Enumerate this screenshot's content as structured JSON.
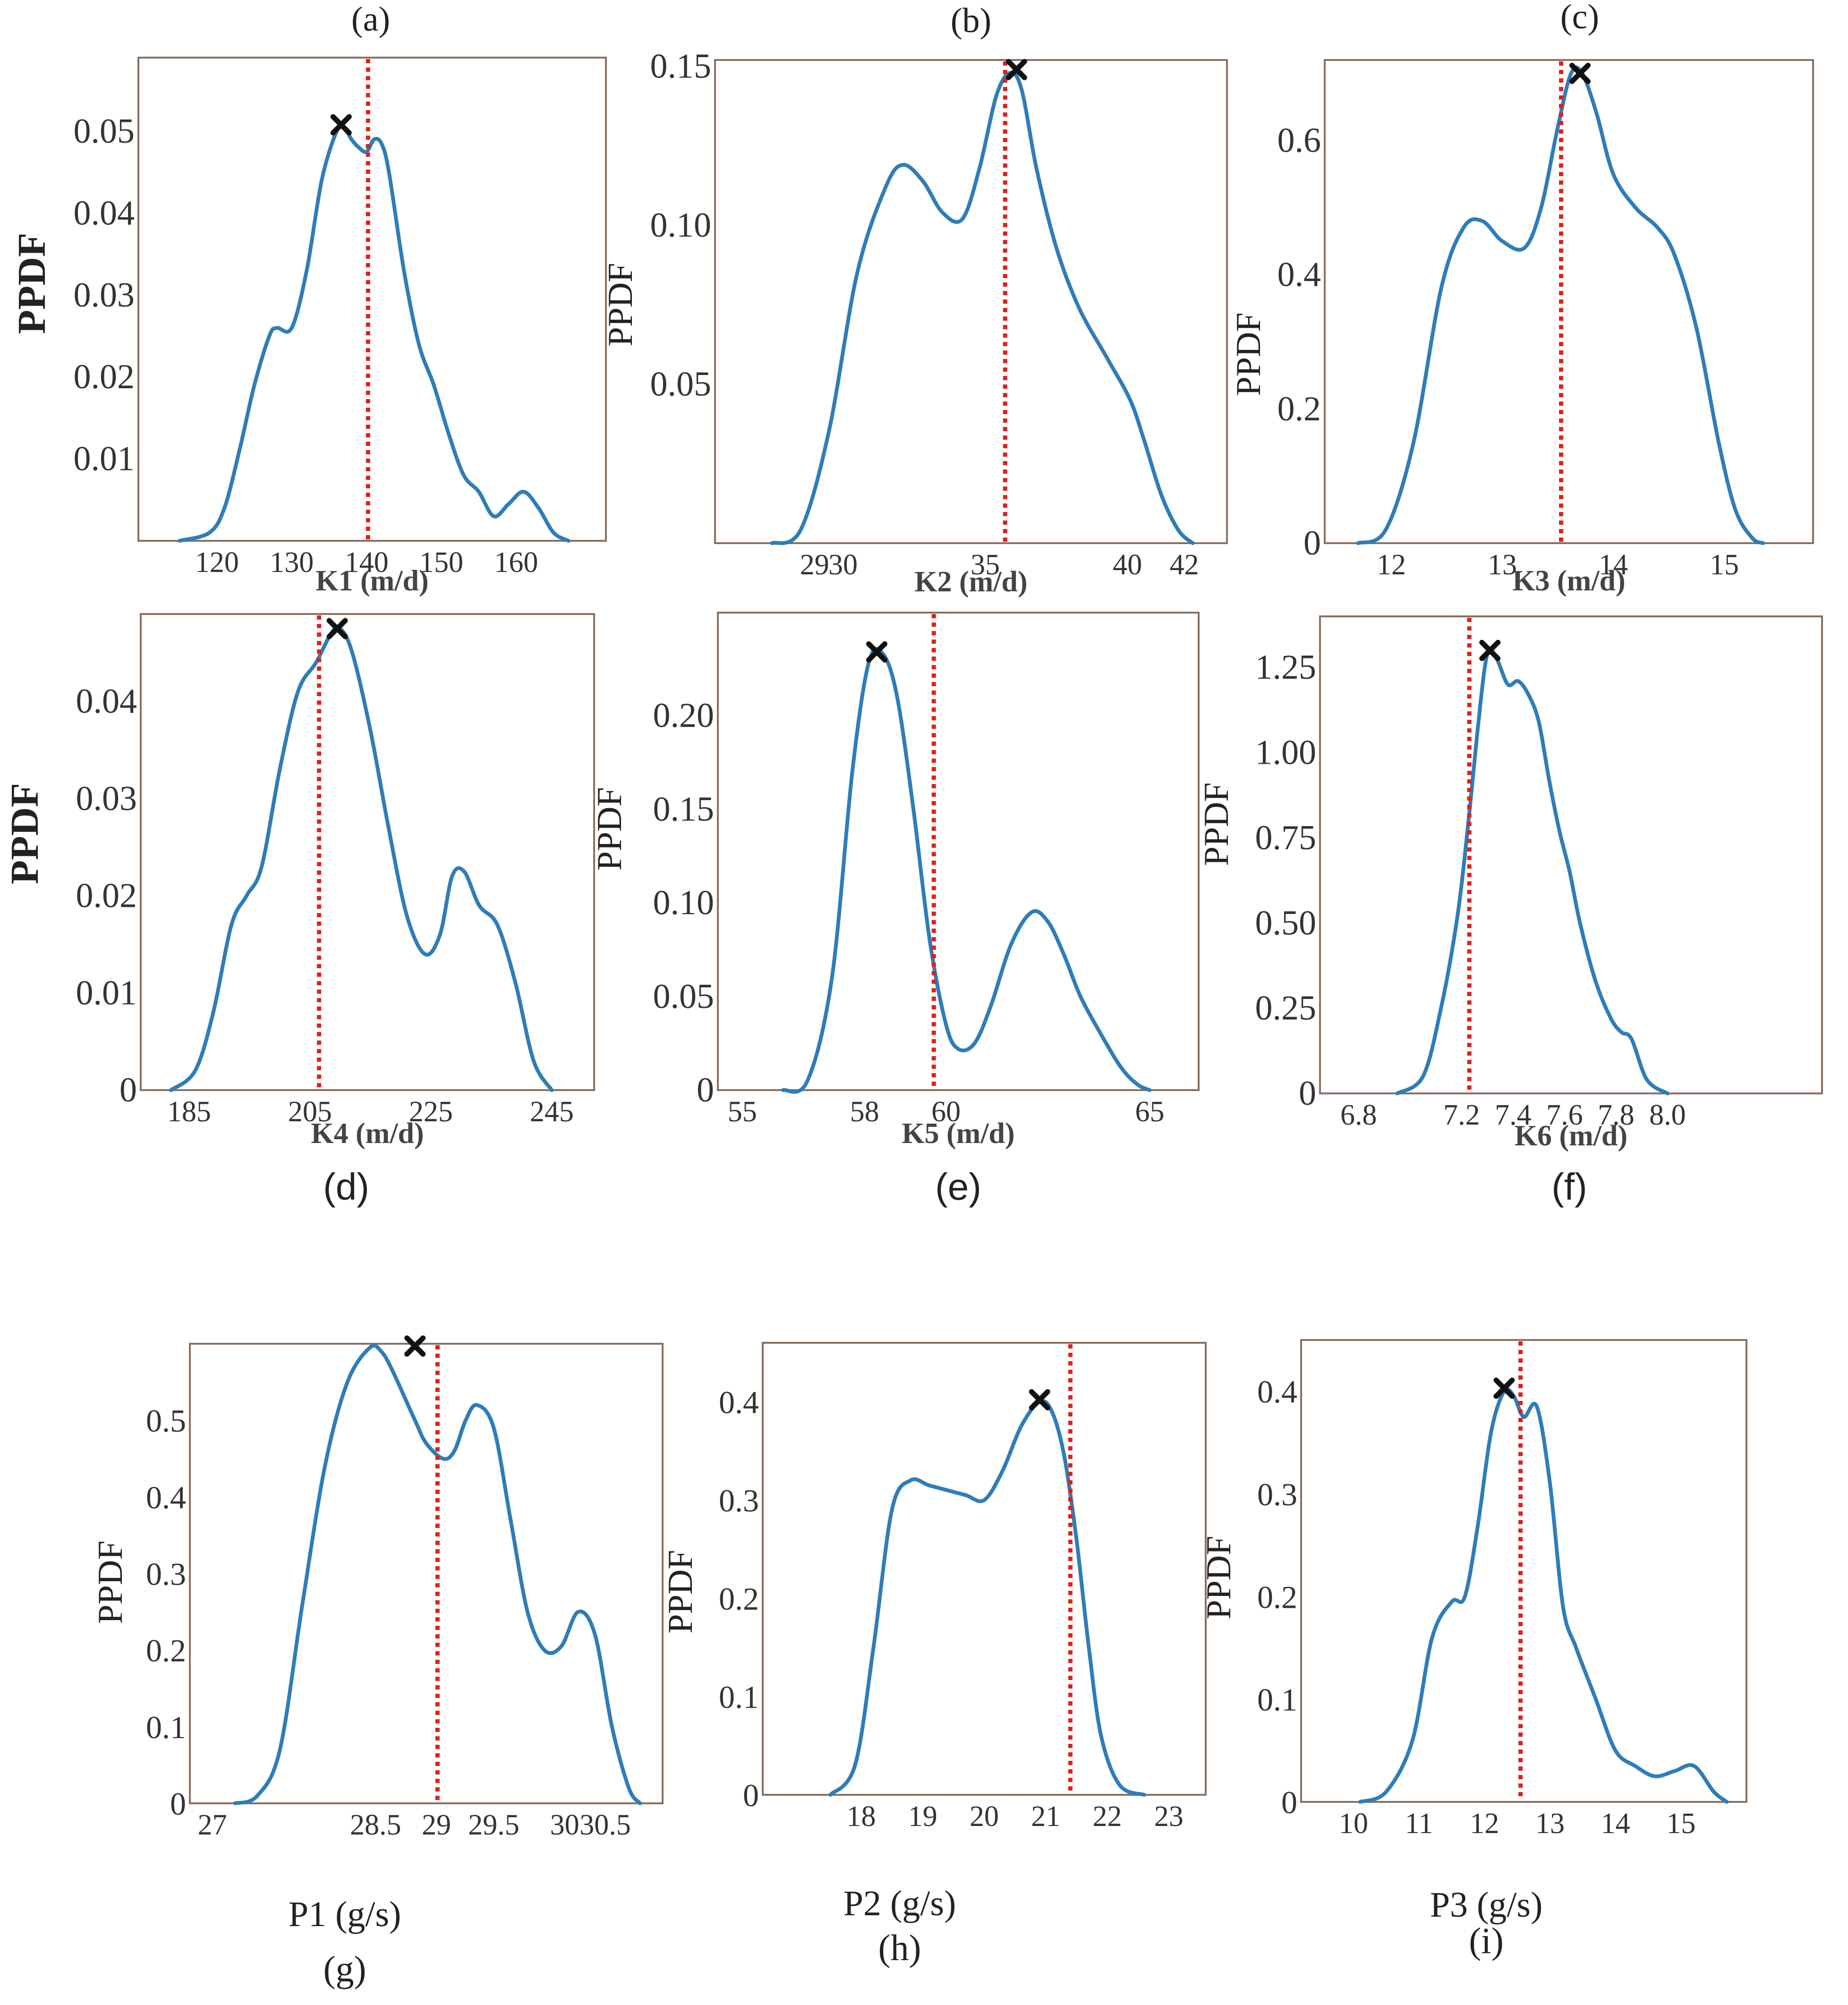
{
  "figure": {
    "kde_color": "#2E7DB8",
    "ref_color": "#E0201C",
    "marker_color": "#111111",
    "frame_color": "#8A7060",
    "ylabel": "PPDF"
  },
  "chart_data": [
    {
      "id": "a",
      "panel_label": "(a)",
      "type": "line",
      "xlabel": "K1 (m/d)",
      "ylabel": "PPDF",
      "xlim": [
        109.5,
        172
      ],
      "ylim": [
        0,
        0.059
      ],
      "xticks": [
        120,
        130,
        140,
        150,
        160
      ],
      "xtick_labels": [
        "120",
        "130",
        "140",
        "150",
        "160"
      ],
      "yticks": [
        0.01,
        0.02,
        0.03,
        0.04,
        0.05
      ],
      "ytick_labels": [
        "0.01",
        "0.02",
        "0.03",
        "0.04",
        "0.05"
      ],
      "curve": {
        "x": [
          115,
          119,
          121,
          123,
          125,
          127,
          128,
          130,
          132,
          134,
          136,
          137,
          138,
          139,
          140,
          141,
          142,
          143,
          145,
          147,
          149,
          151,
          153,
          155,
          157,
          159,
          161,
          163,
          165,
          167
        ],
        "y": [
          0,
          0.001,
          0.004,
          0.011,
          0.019,
          0.025,
          0.026,
          0.026,
          0.033,
          0.044,
          0.05,
          0.0505,
          0.049,
          0.048,
          0.0475,
          0.049,
          0.0485,
          0.045,
          0.033,
          0.024,
          0.019,
          0.013,
          0.008,
          0.006,
          0.003,
          0.0045,
          0.006,
          0.004,
          0.001,
          0
        ]
      },
      "ref_x": 140.2,
      "marker": {
        "x": 136.6,
        "y": 0.0508
      }
    },
    {
      "id": "b",
      "panel_label": "(b)",
      "type": "line",
      "xlabel": "K2 (m/d)",
      "ylabel": "PPDF",
      "xlim": [
        25.5,
        43.5
      ],
      "ylim": [
        0,
        0.152
      ],
      "xticks": [
        29,
        30,
        35,
        40,
        42
      ],
      "xtick_labels": [
        "29",
        "30",
        "35",
        "40",
        "42"
      ],
      "yticks": [
        0.05,
        0.1,
        0.15
      ],
      "ytick_labels": [
        "0.05",
        "0.10",
        "0.15"
      ],
      "curve": {
        "x": [
          27.5,
          28.5,
          29.5,
          30.5,
          31.5,
          32.1,
          32.8,
          33.5,
          34.2,
          34.8,
          35.4,
          35.9,
          36.3,
          36.8,
          37.5,
          38.3,
          39.3,
          40.1,
          40.6,
          41.2,
          41.8,
          42.3
        ],
        "y": [
          0,
          0.004,
          0.035,
          0.085,
          0.112,
          0.119,
          0.114,
          0.104,
          0.102,
          0.118,
          0.141,
          0.148,
          0.142,
          0.118,
          0.093,
          0.074,
          0.058,
          0.045,
          0.032,
          0.015,
          0.004,
          0
        ]
      },
      "ref_x": 35.7,
      "marker": {
        "x": 36.1,
        "y": 0.149
      }
    },
    {
      "id": "c",
      "panel_label": "(c)",
      "type": "line",
      "xlabel": "K3 (m/d)",
      "ylabel": "PPDF",
      "xlim": [
        11.4,
        15.8
      ],
      "ylim": [
        0,
        0.72
      ],
      "xticks": [
        12,
        13,
        14,
        15
      ],
      "xtick_labels": [
        "12",
        "13",
        "14",
        "15"
      ],
      "yticks": [
        0,
        0.2,
        0.4,
        0.6
      ],
      "ytick_labels": [
        "0",
        "0.2",
        "0.4",
        "0.6"
      ],
      "curve": {
        "x": [
          11.7,
          11.95,
          12.2,
          12.45,
          12.65,
          12.82,
          13.0,
          13.2,
          13.35,
          13.5,
          13.62,
          13.72,
          13.85,
          14.0,
          14.2,
          14.4,
          14.55,
          14.75,
          14.95,
          15.1,
          15.25,
          15.35
        ],
        "y": [
          0,
          0.02,
          0.15,
          0.38,
          0.47,
          0.48,
          0.45,
          0.44,
          0.5,
          0.62,
          0.7,
          0.7,
          0.64,
          0.55,
          0.5,
          0.47,
          0.43,
          0.32,
          0.15,
          0.05,
          0.008,
          0
        ]
      },
      "ref_x": 13.53,
      "marker": {
        "x": 13.7,
        "y": 0.7
      }
    },
    {
      "id": "d",
      "panel_label": "(d)",
      "type": "line",
      "xlabel": "K4 (m/d)",
      "ylabel": "PPDF",
      "xlim": [
        177,
        252
      ],
      "ylim": [
        0,
        0.049
      ],
      "xticks": [
        185,
        205,
        225,
        245
      ],
      "xtick_labels": [
        "185",
        "205",
        "225",
        "245"
      ],
      "yticks": [
        0,
        0.01,
        0.02,
        0.03,
        0.04
      ],
      "ytick_labels": [
        "0",
        "0.01",
        "0.02",
        "0.03",
        "0.04"
      ],
      "curve": {
        "x": [
          182,
          186,
          189,
          192,
          194.5,
          197,
          200,
          203,
          206,
          208.5,
          210,
          212,
          215,
          218,
          221,
          224,
          226.5,
          228.5,
          230.5,
          233,
          236,
          239,
          242,
          245
        ],
        "y": [
          0,
          0.002,
          0.008,
          0.017,
          0.02,
          0.023,
          0.033,
          0.041,
          0.044,
          0.047,
          0.0475,
          0.045,
          0.037,
          0.027,
          0.018,
          0.014,
          0.016,
          0.022,
          0.0225,
          0.019,
          0.017,
          0.011,
          0.003,
          0
        ]
      },
      "ref_x": 206.5,
      "marker": {
        "x": 209.5,
        "y": 0.0475
      }
    },
    {
      "id": "e",
      "panel_label": "(e)",
      "type": "line",
      "xlabel": "K5 (m/d)",
      "ylabel": "PPDF",
      "xlim": [
        54.4,
        66.2
      ],
      "ylim": [
        0,
        0.255
      ],
      "xticks": [
        55,
        58,
        60,
        65
      ],
      "xtick_labels": [
        "55",
        "58",
        "60",
        "65"
      ],
      "yticks": [
        0,
        0.05,
        0.1,
        0.15,
        0.2
      ],
      "ytick_labels": [
        "0",
        "0.05",
        "0.10",
        "0.15",
        "0.20"
      ],
      "curve": {
        "x": [
          56.0,
          56.6,
          57.2,
          57.7,
          58.1,
          58.45,
          58.8,
          59.2,
          59.6,
          60.0,
          60.3,
          60.7,
          61.1,
          61.6,
          62.1,
          62.5,
          62.9,
          63.3,
          63.8,
          64.3,
          64.7,
          65.0
        ],
        "y": [
          0,
          0.005,
          0.06,
          0.17,
          0.228,
          0.233,
          0.21,
          0.15,
          0.08,
          0.035,
          0.022,
          0.025,
          0.045,
          0.078,
          0.095,
          0.09,
          0.072,
          0.05,
          0.03,
          0.012,
          0.003,
          0
        ]
      },
      "ref_x": 59.7,
      "marker": {
        "x": 58.3,
        "y": 0.234
      }
    },
    {
      "id": "f",
      "panel_label": "(f)",
      "type": "line",
      "xlabel": "K6 (m/d)",
      "ylabel": "PPDF",
      "xlim": [
        6.65,
        8.6
      ],
      "ylim": [
        0,
        1.4
      ],
      "xticks": [
        6.8,
        7.2,
        7.4,
        7.6,
        7.8,
        8.0
      ],
      "xtick_labels": [
        "6.8",
        "7.2",
        "7.4",
        "7.6",
        "7.8",
        "8.0"
      ],
      "yticks": [
        0,
        0.25,
        0.5,
        0.75,
        1.0,
        1.25
      ],
      "ytick_labels": [
        "0",
        "0.25",
        "0.50",
        "0.75",
        "1.00",
        "1.25"
      ],
      "curve": {
        "x": [
          6.95,
          7.05,
          7.12,
          7.18,
          7.22,
          7.26,
          7.29,
          7.31,
          7.34,
          7.38,
          7.42,
          7.46,
          7.5,
          7.54,
          7.58,
          7.62,
          7.66,
          7.72,
          7.78,
          7.82,
          7.86,
          7.92,
          8.0
        ],
        "y": [
          0,
          0.05,
          0.25,
          0.5,
          0.75,
          1.05,
          1.25,
          1.3,
          1.27,
          1.2,
          1.21,
          1.17,
          1.09,
          0.92,
          0.77,
          0.65,
          0.5,
          0.33,
          0.22,
          0.18,
          0.16,
          0.04,
          0
        ]
      },
      "ref_x": 7.23,
      "marker": {
        "x": 7.31,
        "y": 1.3
      }
    },
    {
      "id": "g",
      "panel_label": "(g)",
      "type": "line",
      "xlabel": "P1 (g/s)",
      "ylabel": "PPDF",
      "xlim": [
        26.8,
        31.0
      ],
      "ylim": [
        0,
        0.6
      ],
      "xticks": [
        27,
        28.5,
        29,
        29.5,
        30,
        30.5
      ],
      "xtick_label_x": [
        27,
        28.45,
        28.99,
        29.5,
        30.13,
        30.49
      ],
      "xtick_labels": [
        "27",
        "28.5",
        "29",
        "29.5",
        "30",
        "30.5"
      ],
      "yticks": [
        0,
        0.1,
        0.2,
        0.3,
        0.4,
        0.5
      ],
      "ytick_labels": [
        "0",
        "0.1",
        "0.2",
        "0.3",
        "0.4",
        "0.5"
      ],
      "curve": {
        "x": [
          27.2,
          27.4,
          27.6,
          27.8,
          28.0,
          28.2,
          28.4,
          28.5,
          28.6,
          28.8,
          28.9,
          29.05,
          29.15,
          29.25,
          29.35,
          29.5,
          29.65,
          29.8,
          29.95,
          30.1,
          30.25,
          30.4,
          30.55,
          30.7,
          30.8
        ],
        "y": [
          0,
          0.01,
          0.07,
          0.26,
          0.44,
          0.55,
          0.595,
          0.59,
          0.565,
          0.5,
          0.47,
          0.45,
          0.46,
          0.5,
          0.52,
          0.49,
          0.37,
          0.25,
          0.2,
          0.205,
          0.25,
          0.22,
          0.1,
          0.02,
          0
        ]
      },
      "ref_x": 29.0,
      "marker": {
        "x": 28.8,
        "y": 0.597
      }
    },
    {
      "id": "h",
      "panel_label": "(h)",
      "type": "line",
      "xlabel": "P2 (g/s)",
      "ylabel": "PPDF",
      "xlim": [
        16.4,
        23.6
      ],
      "ylim": [
        0,
        0.46
      ],
      "xticks": [
        18,
        19,
        20,
        21,
        22,
        23
      ],
      "xtick_labels": [
        "18",
        "19",
        "20",
        "21",
        "22",
        "23"
      ],
      "yticks": [
        0,
        0.1,
        0.2,
        0.3,
        0.4
      ],
      "ytick_labels": [
        "0",
        "0.1",
        "0.2",
        "0.3",
        "0.4"
      ],
      "curve": {
        "x": [
          17.5,
          17.9,
          18.2,
          18.5,
          18.8,
          19.1,
          19.4,
          19.7,
          20.0,
          20.3,
          20.6,
          20.9,
          21.1,
          21.3,
          21.5,
          21.7,
          21.9,
          22.2,
          22.6
        ],
        "y": [
          0,
          0.03,
          0.15,
          0.29,
          0.32,
          0.315,
          0.31,
          0.305,
          0.3,
          0.33,
          0.375,
          0.4,
          0.39,
          0.345,
          0.26,
          0.15,
          0.06,
          0.01,
          0
        ]
      },
      "ref_x": 21.4,
      "marker": {
        "x": 20.9,
        "y": 0.402
      }
    },
    {
      "id": "i",
      "panel_label": "(i)",
      "type": "line",
      "xlabel": "P3 (g/s)",
      "ylabel": "PPDF",
      "xlim": [
        9.2,
        16.0
      ],
      "ylim": [
        0,
        0.45
      ],
      "xticks": [
        10,
        11,
        12,
        13,
        14,
        15
      ],
      "xtick_labels": [
        "10",
        "11",
        "12",
        "13",
        "14",
        "15"
      ],
      "yticks": [
        0,
        0.1,
        0.2,
        0.3,
        0.4
      ],
      "ytick_labels": [
        "0",
        "0.1",
        "0.2",
        "0.3",
        "0.4"
      ],
      "curve": {
        "x": [
          10.1,
          10.5,
          10.9,
          11.2,
          11.5,
          11.7,
          11.9,
          12.1,
          12.3,
          12.45,
          12.6,
          12.8,
          13.0,
          13.2,
          13.4,
          13.7,
          14.0,
          14.3,
          14.6,
          14.9,
          15.2,
          15.5,
          15.7
        ],
        "y": [
          0,
          0.01,
          0.06,
          0.16,
          0.195,
          0.2,
          0.27,
          0.36,
          0.4,
          0.395,
          0.375,
          0.385,
          0.31,
          0.19,
          0.15,
          0.1,
          0.05,
          0.035,
          0.025,
          0.03,
          0.035,
          0.01,
          0
        ]
      },
      "ref_x": 12.55,
      "marker": {
        "x": 12.3,
        "y": 0.403
      }
    }
  ]
}
